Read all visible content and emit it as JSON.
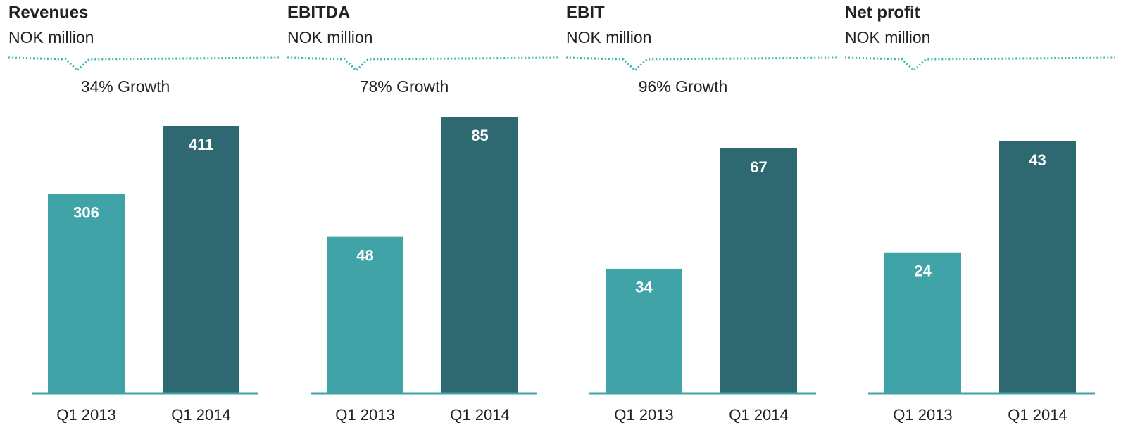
{
  "chart_data": [
    {
      "type": "bar",
      "title": "Revenues",
      "subtitle": "NOK million",
      "annotation": "34% Growth",
      "categories": [
        "Q1 2013",
        "Q1 2014"
      ],
      "values": [
        306,
        411
      ],
      "colors": [
        "#3fa3a8",
        "#2e6870"
      ]
    },
    {
      "type": "bar",
      "title": "EBITDA",
      "subtitle": "NOK million",
      "annotation": "78% Growth",
      "categories": [
        "Q1 2013",
        "Q1 2014"
      ],
      "values": [
        48,
        85
      ],
      "colors": [
        "#3fa3a8",
        "#2e6870"
      ]
    },
    {
      "type": "bar",
      "title": "EBIT",
      "subtitle": "NOK million",
      "annotation": "96% Growth",
      "categories": [
        "Q1 2013",
        "Q1 2014"
      ],
      "values": [
        34,
        67
      ],
      "colors": [
        "#3fa3a8",
        "#2e6870"
      ]
    },
    {
      "type": "bar",
      "title": "Net profit",
      "subtitle": "NOK million",
      "categories": [
        "Q1 2013",
        "Q1 2014"
      ],
      "values": [
        24,
        43
      ],
      "colors": [
        "#3fa3a8",
        "#2e6870"
      ]
    }
  ]
}
